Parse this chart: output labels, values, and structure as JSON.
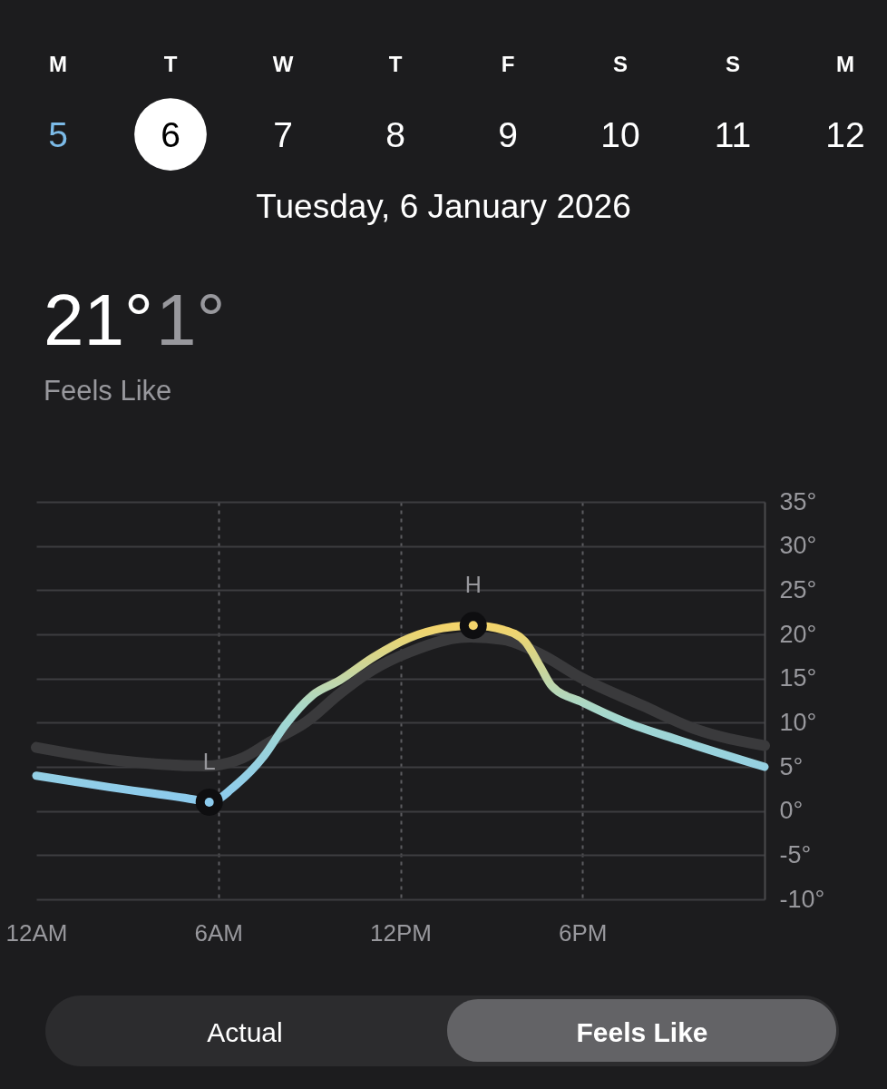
{
  "chart_data": {
    "type": "line",
    "title": "Tuesday, 6 January 2026",
    "subtitle": "Feels Like",
    "xlim": [
      "2026-01-06T00:00",
      "2026-01-07T00:00"
    ],
    "xticks": [
      {
        "value": "2026-01-06T00:00",
        "label": "12AM"
      },
      {
        "value": "2026-01-06T06:00",
        "label": "6AM"
      },
      {
        "value": "2026-01-06T12:00",
        "label": "12PM"
      },
      {
        "value": "2026-01-06T18:00",
        "label": "6PM"
      }
    ],
    "ylim": [
      -10,
      35
    ],
    "yticks": [
      {
        "value": -10,
        "label": "-10°"
      },
      {
        "value": -5,
        "label": "-5°"
      },
      {
        "value": 0,
        "label": "0°"
      },
      {
        "value": 5,
        "label": "5°"
      },
      {
        "value": 10,
        "label": "10°"
      },
      {
        "value": 15,
        "label": "15°"
      },
      {
        "value": 20,
        "label": "20°"
      },
      {
        "value": 25,
        "label": "25°"
      },
      {
        "value": 30,
        "label": "30°"
      },
      {
        "value": 35,
        "label": "35°"
      }
    ],
    "grid": true,
    "series": [
      {
        "color": "#3a3a3c",
        "x": [
          "2026-01-06T00:00",
          "2026-01-06T02:30",
          "2026-01-06T05:36",
          "2026-01-06T06:48",
          "2026-01-06T07:42",
          "2026-01-06T08:54",
          "2026-01-06T10:00",
          "2026-01-06T11:06",
          "2026-01-06T12:18",
          "2026-01-06T14:18",
          "2026-01-06T15:24",
          "2026-01-06T16:36",
          "2026-01-06T18:00",
          "2026-01-06T20:00",
          "2026-01-06T21:42",
          "2026-01-07T00:00"
        ],
        "values": [
          7.2,
          5.8,
          5.1,
          6.0,
          7.8,
          10.1,
          13.3,
          16.0,
          18.0,
          19.7,
          19.4,
          17.8,
          15.0,
          11.9,
          9.3,
          7.4
        ]
      },
      {
        "colors": [
          "#93cfe5",
          "#90cde9",
          "#8dcbed",
          "#8ccbee",
          "#91cee8",
          "#98d2de",
          "#a0d6d3",
          "#b4d7ba",
          "#c1d6a9",
          "#d6d58c",
          "#e8d576",
          "#f1d46d",
          "#f3d46b",
          "#efd46f",
          "#e5d57a",
          "#ced697",
          "#bcd7b0",
          "#add8c3",
          "#a1d7d2",
          "#9cd4d8",
          "#95d0e2"
        ],
        "x": [
          "2026-01-06T00:00",
          "2026-01-06T02:24",
          "2026-01-06T05:12",
          "2026-01-06T05:42",
          "2026-01-06T06:36",
          "2026-01-06T07:30",
          "2026-01-06T08:12",
          "2026-01-06T09:06",
          "2026-01-06T10:00",
          "2026-01-06T11:06",
          "2026-01-06T12:18",
          "2026-01-06T13:24",
          "2026-01-06T14:24",
          "2026-01-06T15:24",
          "2026-01-06T16:06",
          "2026-01-06T16:36",
          "2026-01-06T17:00",
          "2026-01-06T18:00",
          "2026-01-06T19:24",
          "2026-01-06T21:12",
          "2026-01-07T00:00"
        ],
        "values": [
          4.0,
          2.7,
          1.3,
          1,
          3.0,
          6.2,
          9.7,
          13.1,
          14.8,
          17.4,
          19.6,
          20.7,
          21,
          20.5,
          19.2,
          16.4,
          14.1,
          12.3,
          10.1,
          8.0,
          5.0
        ]
      }
    ],
    "annotations": [
      "M",
      "T",
      "W",
      "T",
      "F",
      "S",
      "S",
      "M",
      "5",
      "6",
      "7",
      "8",
      "9",
      "10",
      "11",
      "12",
      "21°",
      "1°",
      {
        "text": "L",
        "x": "2026-01-06T05:42",
        "y": 1
      },
      {
        "text": "H",
        "x": "2026-01-06T14:24",
        "y": 21
      },
      "Actual",
      "Feels Like"
    ]
  }
}
